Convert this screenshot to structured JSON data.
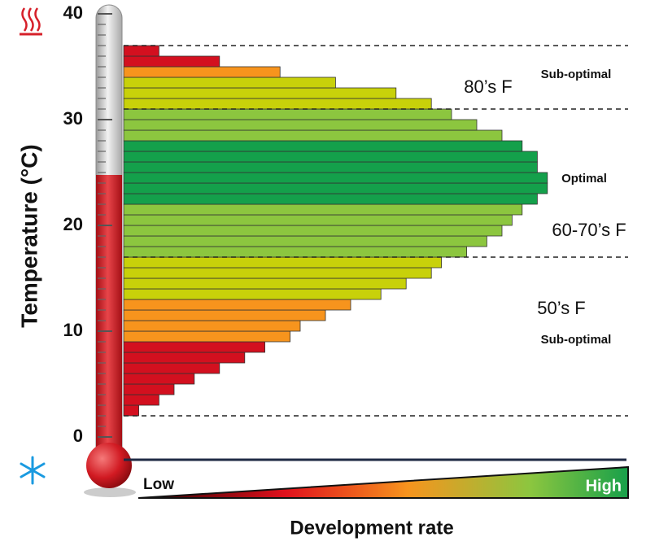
{
  "chart_data": {
    "type": "barh-histogram",
    "y_label": "Temperature (°C)",
    "x_label": "Development rate",
    "x_low_label": "Low",
    "x_high_label": "High",
    "ylim": [
      0,
      40
    ],
    "yticks": [
      0,
      10,
      20,
      30,
      40
    ],
    "xlim": [
      0,
      100
    ],
    "bins": [
      2,
      3,
      4,
      5,
      6,
      7,
      8,
      9,
      10,
      11,
      12,
      13,
      14,
      15,
      16,
      17,
      18,
      19,
      20,
      21,
      22,
      23,
      24,
      25,
      26,
      27,
      28,
      29,
      30,
      31,
      32,
      33,
      34,
      35,
      36,
      37
    ],
    "values": [
      3,
      7,
      10,
      14,
      19,
      24,
      28,
      33,
      35,
      40,
      45,
      51,
      56,
      61,
      63,
      68,
      72,
      75,
      77,
      79,
      82,
      84,
      84,
      82,
      82,
      79,
      75,
      70,
      65,
      61,
      54,
      42,
      31,
      19,
      7
    ],
    "colors": [
      "#d3101f",
      "#d3101f",
      "#d3101f",
      "#d3101f",
      "#d3101f",
      "#d3101f",
      "#d3101f",
      "#f7941d",
      "#f7941d",
      "#f7941d",
      "#f7941d",
      "#c8d10a",
      "#c8d10a",
      "#c8d10a",
      "#c8d10a",
      "#8cc63f",
      "#8cc63f",
      "#8cc63f",
      "#8cc63f",
      "#8cc63f",
      "#14a04b",
      "#14a04b",
      "#14a04b",
      "#14a04b",
      "#14a04b",
      "#14a04b",
      "#8cc63f",
      "#8cc63f",
      "#8cc63f",
      "#c8d10a",
      "#c8d10a",
      "#c8d10a",
      "#f7941d",
      "#d3101f",
      "#d3101f"
    ],
    "reference_lines": [
      2,
      17,
      31,
      37
    ],
    "annotations": [
      "Sub-optimal",
      "80’s F",
      "Optimal",
      "60-70’s F",
      "50’s F",
      "Sub-optimal"
    ]
  }
}
